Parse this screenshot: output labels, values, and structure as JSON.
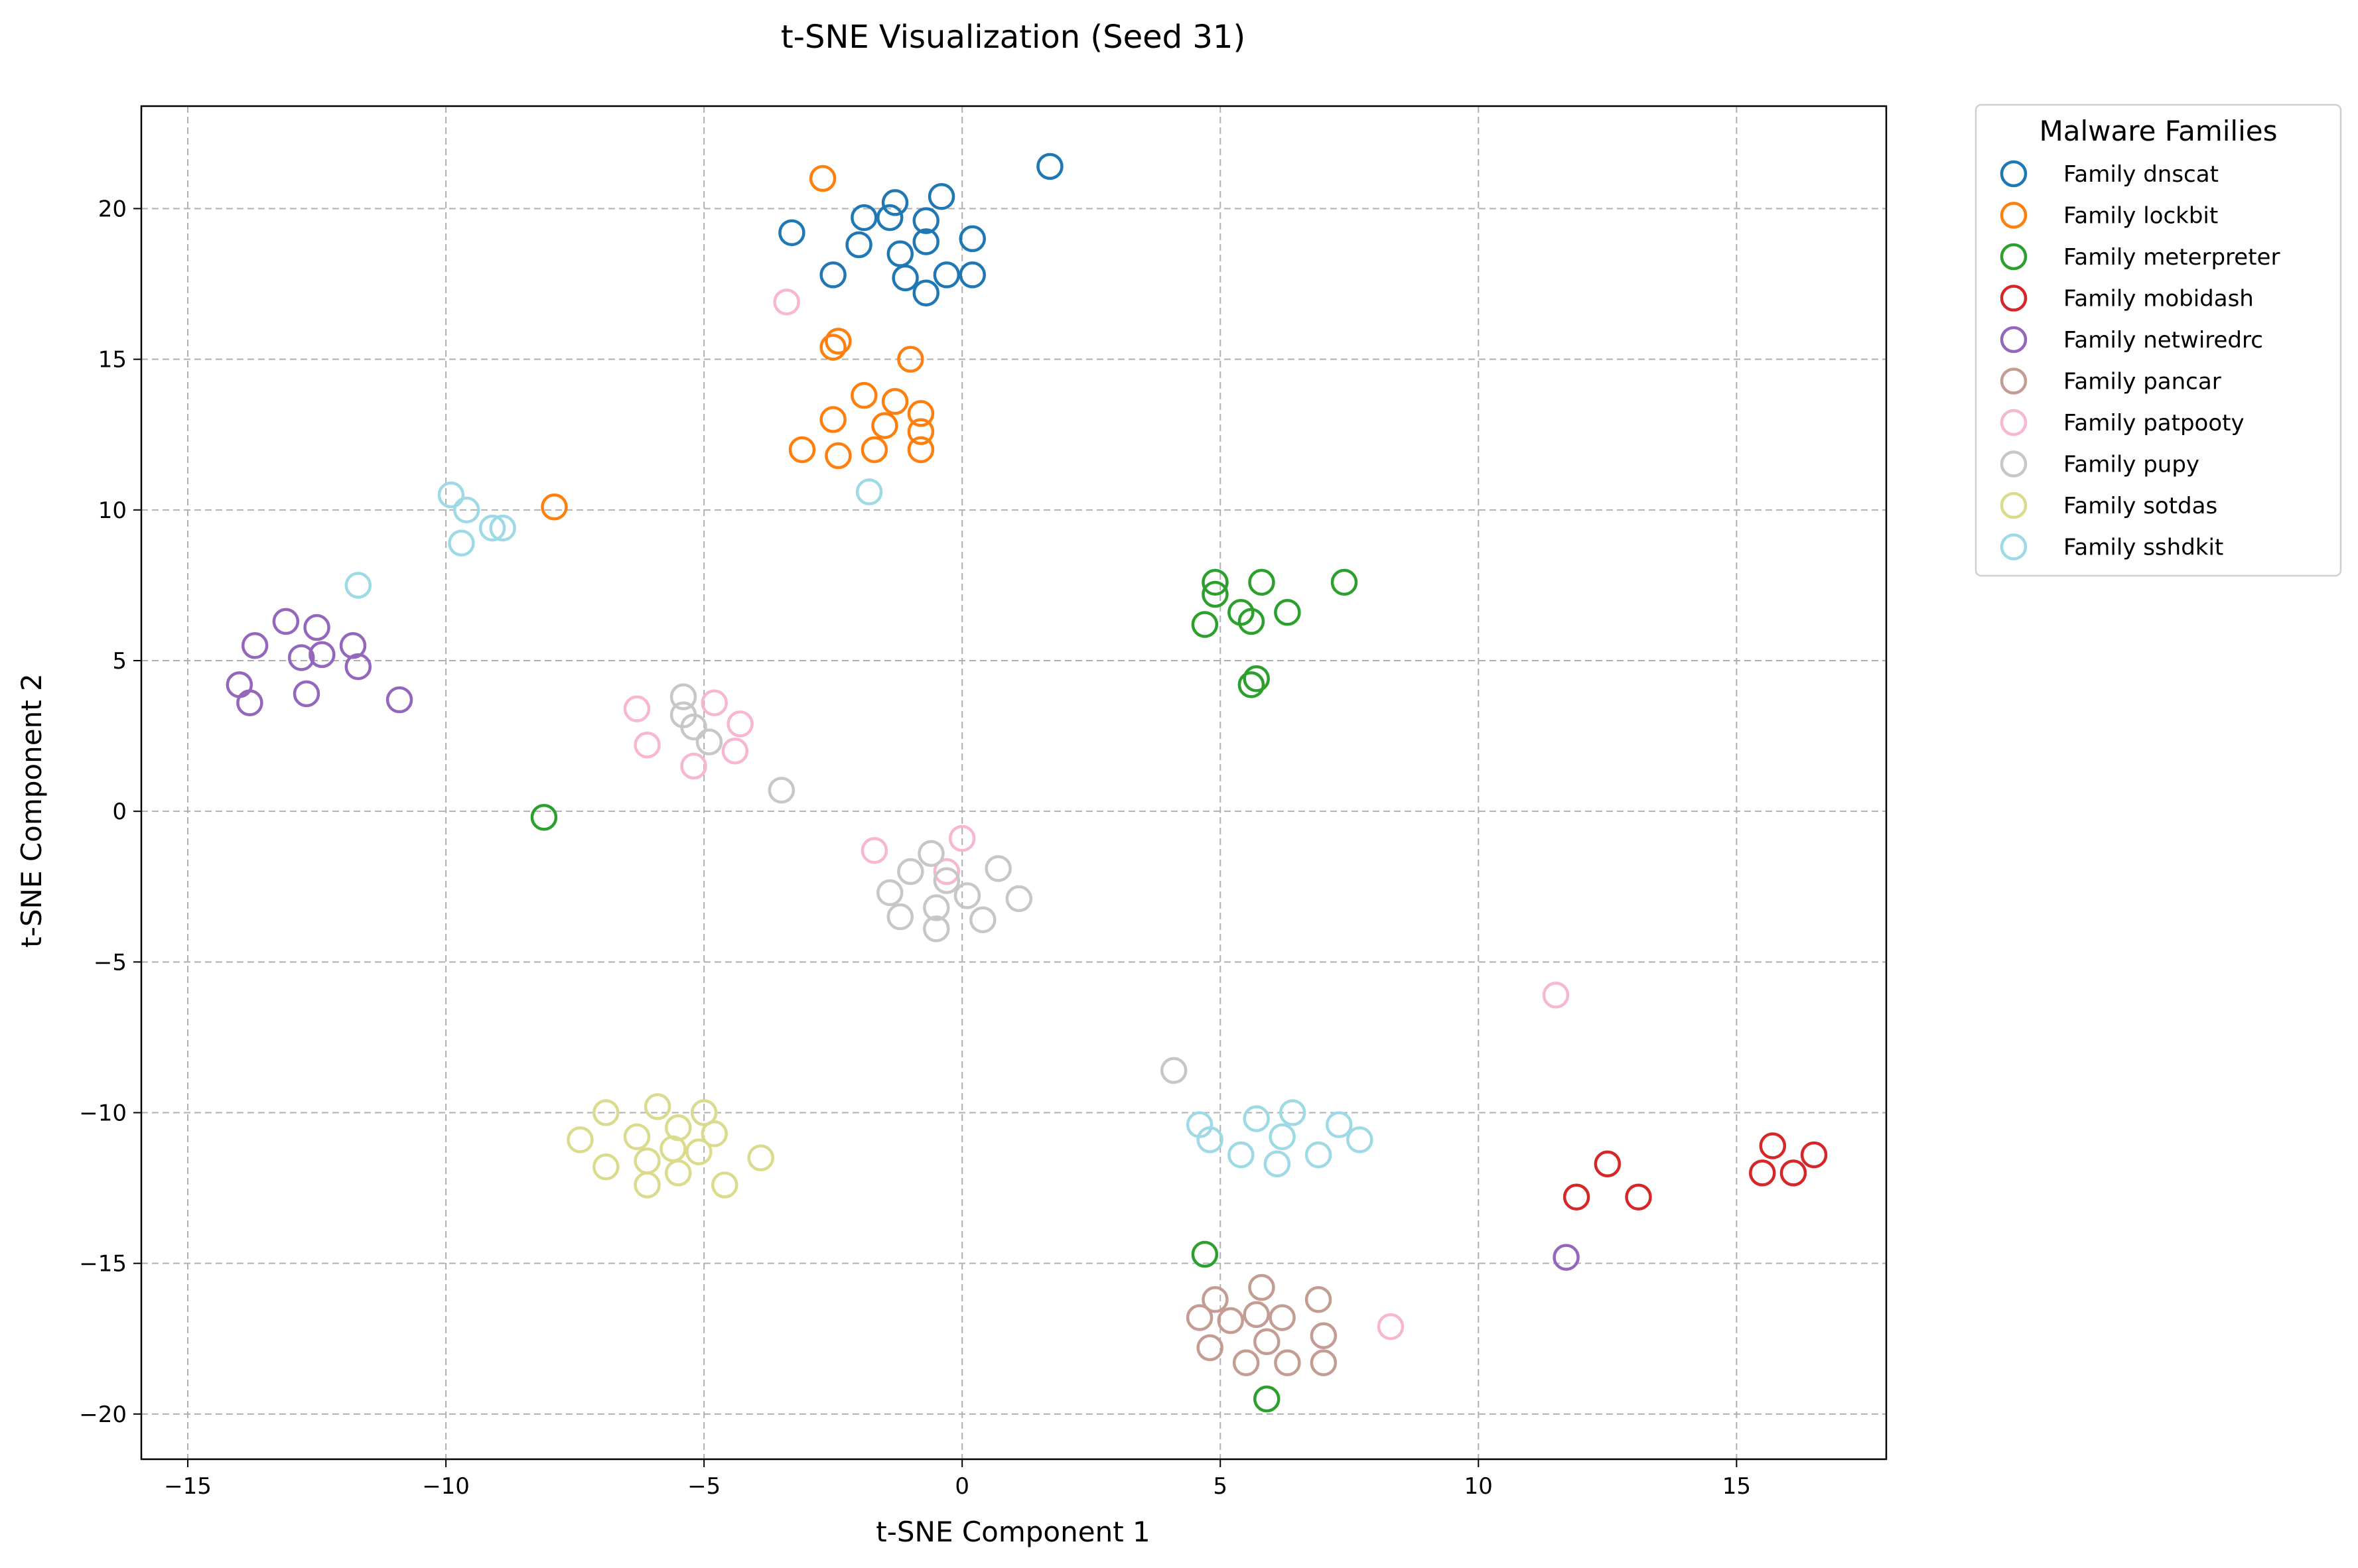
{
  "chart_data": {
    "type": "scatter",
    "title": "t-SNE Visualization (Seed 31)",
    "xlabel": "t-SNE Component 1",
    "ylabel": "t-SNE Component 2",
    "xlim": [
      -15.9,
      17.9
    ],
    "ylim": [
      -21.5,
      23.4
    ],
    "xticks": [
      -15,
      -10,
      -5,
      0,
      5,
      10,
      15
    ],
    "yticks": [
      -20,
      -15,
      -10,
      -5,
      0,
      5,
      10,
      15,
      20
    ],
    "xtick_labels": [
      "−15",
      "−10",
      "−5",
      "0",
      "5",
      "10",
      "15"
    ],
    "ytick_labels": [
      "−20",
      "−15",
      "−10",
      "−5",
      "0",
      "5",
      "10",
      "15",
      "20"
    ],
    "grid": true,
    "legend": {
      "title": "Malware Families",
      "placement": "outside-right"
    },
    "series": [
      {
        "name": "Family dnscat",
        "color": "#1f77b4",
        "points": [
          [
            1.7,
            21.4
          ],
          [
            -3.3,
            19.2
          ],
          [
            -1.9,
            19.7
          ],
          [
            -1.3,
            20.2
          ],
          [
            -1.4,
            19.7
          ],
          [
            -0.4,
            20.4
          ],
          [
            -2.0,
            18.8
          ],
          [
            -1.2,
            18.5
          ],
          [
            -0.7,
            19.6
          ],
          [
            -0.7,
            18.9
          ],
          [
            0.2,
            19.0
          ],
          [
            -2.5,
            17.8
          ],
          [
            -1.1,
            17.7
          ],
          [
            -0.3,
            17.8
          ],
          [
            -0.7,
            17.2
          ],
          [
            0.2,
            17.8
          ]
        ]
      },
      {
        "name": "Family lockbit",
        "color": "#ff7f0e",
        "points": [
          [
            -2.7,
            21.0
          ],
          [
            -2.4,
            15.6
          ],
          [
            -2.5,
            15.4
          ],
          [
            -1.0,
            15.0
          ],
          [
            -1.9,
            13.8
          ],
          [
            -1.3,
            13.6
          ],
          [
            -2.5,
            13.0
          ],
          [
            -0.8,
            13.2
          ],
          [
            -1.5,
            12.8
          ],
          [
            -0.8,
            12.6
          ],
          [
            -3.1,
            12.0
          ],
          [
            -2.4,
            11.8
          ],
          [
            -1.7,
            12.0
          ],
          [
            -0.8,
            12.0
          ],
          [
            -7.9,
            10.1
          ]
        ]
      },
      {
        "name": "Family meterpreter",
        "color": "#2ca02c",
        "points": [
          [
            4.9,
            7.6
          ],
          [
            5.8,
            7.6
          ],
          [
            7.4,
            7.6
          ],
          [
            4.9,
            7.2
          ],
          [
            5.4,
            6.6
          ],
          [
            6.3,
            6.6
          ],
          [
            4.7,
            6.2
          ],
          [
            5.6,
            6.3
          ],
          [
            5.7,
            4.4
          ],
          [
            5.6,
            4.2
          ],
          [
            -8.1,
            -0.2
          ],
          [
            4.7,
            -14.7
          ],
          [
            5.9,
            -19.5
          ]
        ]
      },
      {
        "name": "Family mobidash",
        "color": "#d62728",
        "points": [
          [
            15.7,
            -11.1
          ],
          [
            16.5,
            -11.4
          ],
          [
            15.5,
            -12.0
          ],
          [
            16.1,
            -12.0
          ],
          [
            12.5,
            -11.7
          ],
          [
            11.9,
            -12.8
          ],
          [
            13.1,
            -12.8
          ]
        ]
      },
      {
        "name": "Family netwiredrc",
        "color": "#9467bd",
        "points": [
          [
            -13.1,
            6.3
          ],
          [
            -12.5,
            6.1
          ],
          [
            -13.7,
            5.5
          ],
          [
            -11.8,
            5.5
          ],
          [
            -12.8,
            5.1
          ],
          [
            -12.4,
            5.2
          ],
          [
            -11.7,
            4.8
          ],
          [
            -14.0,
            4.2
          ],
          [
            -12.7,
            3.9
          ],
          [
            -13.8,
            3.6
          ],
          [
            -10.9,
            3.7
          ],
          [
            11.7,
            -14.8
          ]
        ]
      },
      {
        "name": "Family pancar",
        "color": "#c49c94",
        "points": [
          [
            5.8,
            -15.8
          ],
          [
            4.9,
            -16.2
          ],
          [
            6.9,
            -16.2
          ],
          [
            4.6,
            -16.8
          ],
          [
            5.2,
            -16.9
          ],
          [
            5.7,
            -16.7
          ],
          [
            6.2,
            -16.8
          ],
          [
            4.8,
            -17.8
          ],
          [
            5.9,
            -17.6
          ],
          [
            7.0,
            -17.4
          ],
          [
            5.5,
            -18.3
          ],
          [
            6.3,
            -18.3
          ],
          [
            7.0,
            -18.3
          ]
        ]
      },
      {
        "name": "Family patpooty",
        "color": "#f7b6d2",
        "points": [
          [
            -3.4,
            16.9
          ],
          [
            -6.3,
            3.4
          ],
          [
            -4.8,
            3.6
          ],
          [
            -4.3,
            2.9
          ],
          [
            -6.1,
            2.2
          ],
          [
            -4.4,
            2.0
          ],
          [
            -5.2,
            1.5
          ],
          [
            -1.7,
            -1.3
          ],
          [
            0.0,
            -0.9
          ],
          [
            -0.3,
            -2.0
          ],
          [
            11.5,
            -6.1
          ],
          [
            8.3,
            -17.1
          ]
        ]
      },
      {
        "name": "Family pupy",
        "color": "#c7c7c7",
        "points": [
          [
            -5.4,
            3.8
          ],
          [
            -5.4,
            3.2
          ],
          [
            -5.2,
            2.8
          ],
          [
            -4.9,
            2.3
          ],
          [
            -3.5,
            0.7
          ],
          [
            -0.6,
            -1.4
          ],
          [
            0.7,
            -1.9
          ],
          [
            -1.0,
            -2.0
          ],
          [
            -0.3,
            -2.3
          ],
          [
            -1.4,
            -2.7
          ],
          [
            0.1,
            -2.8
          ],
          [
            1.1,
            -2.9
          ],
          [
            -0.5,
            -3.2
          ],
          [
            -1.2,
            -3.5
          ],
          [
            0.4,
            -3.6
          ],
          [
            -0.5,
            -3.9
          ],
          [
            4.1,
            -8.6
          ]
        ]
      },
      {
        "name": "Family sotdas",
        "color": "#dbdb8d",
        "points": [
          [
            -5.9,
            -9.8
          ],
          [
            -6.9,
            -10.0
          ],
          [
            -5.0,
            -10.0
          ],
          [
            -5.5,
            -10.5
          ],
          [
            -6.3,
            -10.8
          ],
          [
            -4.8,
            -10.7
          ],
          [
            -7.4,
            -10.9
          ],
          [
            -5.6,
            -11.2
          ],
          [
            -5.1,
            -11.3
          ],
          [
            -6.1,
            -11.6
          ],
          [
            -3.9,
            -11.5
          ],
          [
            -6.9,
            -11.8
          ],
          [
            -5.5,
            -12.0
          ],
          [
            -6.1,
            -12.4
          ],
          [
            -4.6,
            -12.4
          ]
        ]
      },
      {
        "name": "Family sshdkit",
        "color": "#9edae5",
        "points": [
          [
            -9.9,
            10.5
          ],
          [
            -9.6,
            10.0
          ],
          [
            -9.1,
            9.4
          ],
          [
            -8.9,
            9.4
          ],
          [
            -9.7,
            8.9
          ],
          [
            -11.7,
            7.5
          ],
          [
            -1.8,
            10.6
          ],
          [
            6.4,
            -10.0
          ],
          [
            5.7,
            -10.2
          ],
          [
            4.6,
            -10.4
          ],
          [
            7.3,
            -10.4
          ],
          [
            6.2,
            -10.8
          ],
          [
            4.8,
            -10.9
          ],
          [
            7.7,
            -10.9
          ],
          [
            5.4,
            -11.4
          ],
          [
            6.9,
            -11.4
          ],
          [
            6.1,
            -11.7
          ]
        ]
      }
    ]
  }
}
